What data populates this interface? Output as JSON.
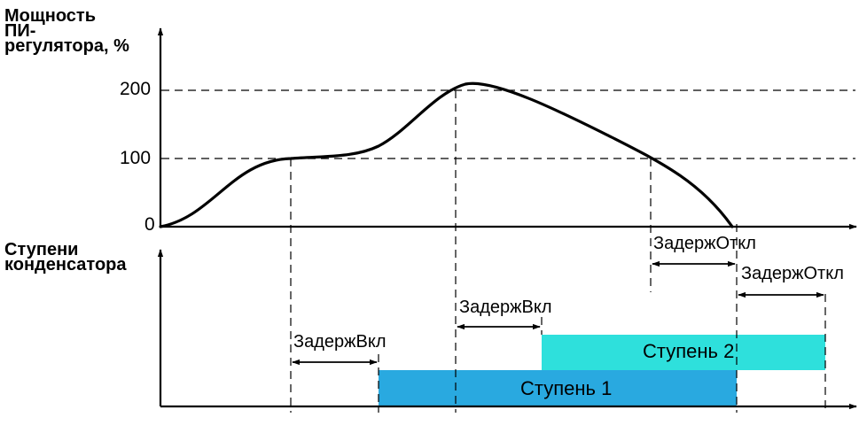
{
  "top_chart": {
    "axis_label_lines": [
      "Мощность",
      "ПИ-",
      "регулятора, %"
    ],
    "tick_labels": [
      "200",
      "100",
      "0"
    ]
  },
  "bottom_chart": {
    "axis_label_lines": [
      "Ступени",
      "конденсатора"
    ]
  },
  "delays": {
    "on_label": "ЗадержВкл",
    "off_label": "ЗадержОткл"
  },
  "stages": {
    "stage1": "Ступень 1",
    "stage2": "Ступень 2"
  },
  "colors": {
    "stage1_fill": "#29a9e0",
    "stage2_fill": "#2ee0dc",
    "line": "#000000"
  }
}
